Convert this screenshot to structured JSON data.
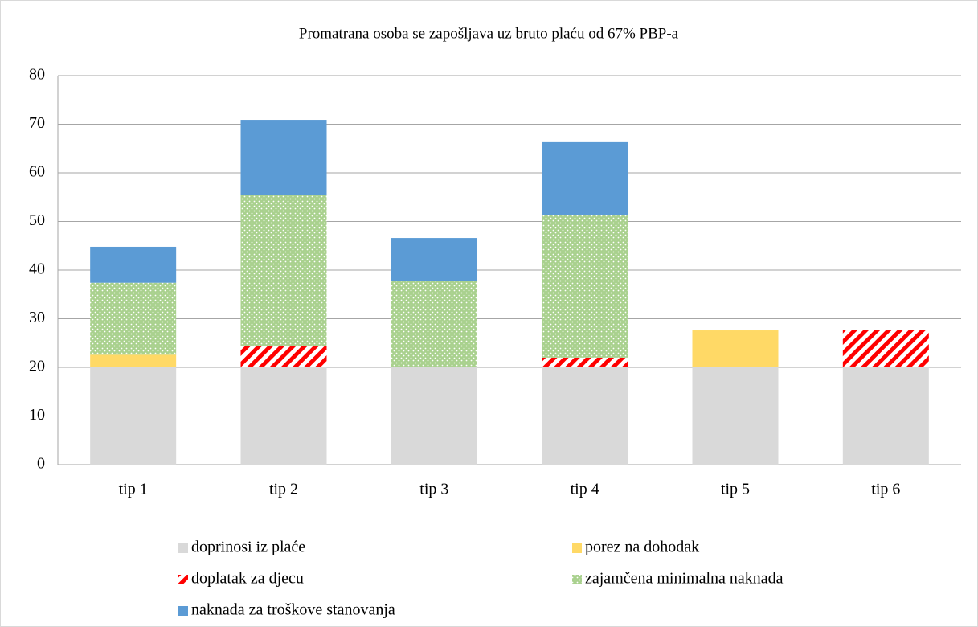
{
  "chart_data": {
    "type": "stacked_bar",
    "title": "Promatrana osoba se zapošljava uz bruto plaću od 67% PBP-a",
    "categories": [
      "tip 1",
      "tip 2",
      "tip 3",
      "tip 4",
      "tip 5",
      "tip 6"
    ],
    "series": [
      {
        "name": "doprinosi iz plaće",
        "color": "#d9d9d9",
        "pattern": "solid",
        "values": [
          20,
          20,
          20,
          20,
          20,
          20
        ]
      },
      {
        "name": "porez na dohodak",
        "color": "#ffd966",
        "pattern": "solid",
        "values": [
          2.6,
          0,
          0,
          0,
          7.6,
          0
        ]
      },
      {
        "name": "doplatak za djecu",
        "color": "#ff0000",
        "pattern": "stripes",
        "values": [
          0,
          4.3,
          0,
          2.0,
          0,
          7.6
        ]
      },
      {
        "name": "zajamčena minimalna naknada",
        "color": "#a9d18e",
        "pattern": "dots",
        "values": [
          14.8,
          31.1,
          17.8,
          29.4,
          0,
          0
        ]
      },
      {
        "name": "naknada za troškove stanovanja",
        "color": "#5b9bd5",
        "pattern": "solid",
        "values": [
          7.4,
          15.5,
          8.8,
          14.9,
          0,
          0
        ]
      }
    ],
    "ylim": [
      0,
      80
    ],
    "yticks": [
      0,
      10,
      20,
      30,
      40,
      50,
      60,
      70,
      80
    ],
    "grid": true
  }
}
